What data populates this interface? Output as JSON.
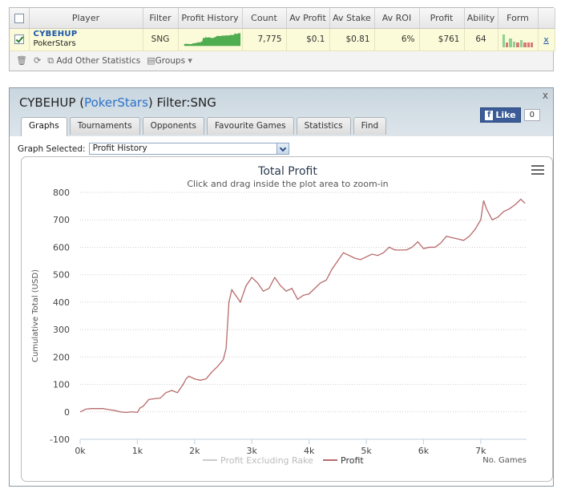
{
  "stats": {
    "headers": [
      "",
      "Player",
      "Filter",
      "Profit History",
      "Count",
      "Av Profit",
      "Av Stake",
      "Av ROI",
      "Profit",
      "Ability",
      "Form",
      ""
    ],
    "row": {
      "player_name": "CYBEHUP",
      "player_site": "PokerStars",
      "filter": "SNG",
      "count": "7,775",
      "av_profit": "$0.1",
      "av_stake": "$0.81",
      "av_roi": "6%",
      "profit": "$761",
      "ability": "64",
      "remove": "x"
    },
    "form_bars": [
      {
        "value": 0.8,
        "color": "#8fd28f"
      },
      {
        "value": 0.3,
        "color": "#d97a7a"
      },
      {
        "value": 0.55,
        "color": "#8fd28f"
      },
      {
        "value": 0.35,
        "color": "#8fd28f"
      },
      {
        "value": 0.3,
        "color": "#d97a7a"
      },
      {
        "value": 0.45,
        "color": "#8fd28f"
      },
      {
        "value": 0.3,
        "color": "#d97a7a"
      },
      {
        "value": 0.3,
        "color": "#d97a7a"
      },
      {
        "value": 0.3,
        "color": "#d97a7a"
      }
    ],
    "toolbar": {
      "add_stats": "Add Other Statistics",
      "groups": "Groups"
    }
  },
  "panel": {
    "title_player": "CYBEHUP",
    "title_site": "PokerStars",
    "title_filter": "Filter:SNG",
    "close": "x",
    "like_label": "Like",
    "like_count": "0",
    "tabs": [
      "Graphs",
      "Tournaments",
      "Opponents",
      "Favourite Games",
      "Statistics",
      "Find"
    ],
    "graph_selected_label": "Graph Selected:",
    "graph_selected_value": "Profit History"
  },
  "chart_data": {
    "type": "line",
    "title": "Total Profit",
    "subtitle": "Click and drag inside the plot area to zoom-in",
    "xlabel": "No. Games",
    "ylabel": "Cumulative Total (USD)",
    "xlim": [
      0,
      7800
    ],
    "ylim": [
      -100,
      800
    ],
    "x_ticks": [
      "0k",
      "1k",
      "2k",
      "3k",
      "4k",
      "5k",
      "6k",
      "7k"
    ],
    "y_ticks": [
      "-100",
      "0",
      "100",
      "200",
      "300",
      "400",
      "500",
      "600",
      "700",
      "800"
    ],
    "grid": true,
    "legend_position": "bottom",
    "legend": [
      "Profit Excluding Rake",
      "Profit"
    ],
    "series": [
      {
        "name": "Profit Excluding Rake",
        "color": "#cccccc",
        "x": [],
        "y": []
      },
      {
        "name": "Profit",
        "color": "#b86a6a",
        "x": [
          0,
          100,
          200,
          400,
          500,
          600,
          700,
          800,
          900,
          1000,
          1050,
          1100,
          1200,
          1300,
          1400,
          1500,
          1600,
          1700,
          1800,
          1850,
          1900,
          2000,
          2100,
          2200,
          2300,
          2400,
          2500,
          2550,
          2600,
          2650,
          2700,
          2800,
          2900,
          3000,
          3100,
          3200,
          3300,
          3400,
          3500,
          3600,
          3700,
          3800,
          3900,
          4000,
          4100,
          4200,
          4300,
          4400,
          4500,
          4600,
          4700,
          4800,
          4900,
          5000,
          5100,
          5200,
          5300,
          5400,
          5500,
          5600,
          5700,
          5800,
          5900,
          6000,
          6100,
          6200,
          6300,
          6400,
          6500,
          6600,
          6700,
          6800,
          6900,
          7000,
          7050,
          7100,
          7150,
          7200,
          7300,
          7400,
          7500,
          7600,
          7700,
          7775
        ],
        "y": [
          0,
          10,
          12,
          12,
          8,
          5,
          0,
          -2,
          0,
          -2,
          15,
          20,
          45,
          48,
          50,
          70,
          78,
          70,
          100,
          120,
          130,
          120,
          115,
          120,
          145,
          165,
          190,
          230,
          400,
          445,
          430,
          400,
          460,
          490,
          470,
          440,
          450,
          490,
          460,
          440,
          450,
          410,
          425,
          430,
          450,
          470,
          480,
          520,
          550,
          580,
          570,
          560,
          555,
          565,
          575,
          570,
          580,
          600,
          590,
          590,
          590,
          600,
          620,
          595,
          600,
          600,
          615,
          640,
          635,
          630,
          625,
          640,
          665,
          700,
          770,
          740,
          720,
          700,
          710,
          730,
          740,
          755,
          775,
          760
        ]
      }
    ]
  }
}
